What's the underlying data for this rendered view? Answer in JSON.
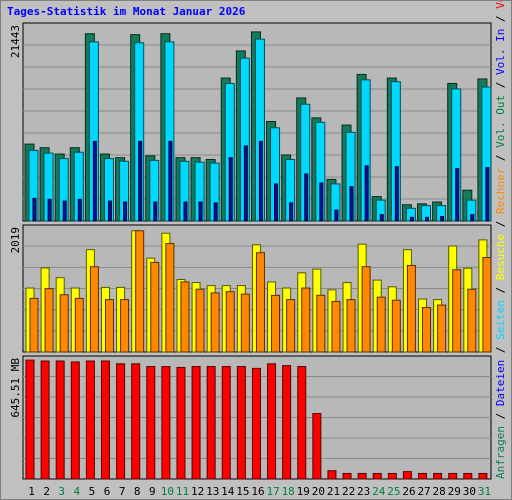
{
  "title": "Tages-Statistik im Monat Januar 2026",
  "colors": {
    "background": "#c0c0c0",
    "panel": "#b8b8b8",
    "grid": "#8a8a8a",
    "title": "#0000ff",
    "anfragen": "#137b59",
    "dateien": "#00d8ff",
    "seiten": "#0010a0",
    "besuche": "#ffff00",
    "rechner": "#ff8800",
    "volumen": "#ff0000",
    "weekend": "#008040",
    "weekday": "#000000"
  },
  "chart_data": [
    {
      "type": "bar",
      "panel": "top",
      "ymax_label": "21443",
      "ymax": 21443,
      "categories": [
        "1",
        "2",
        "3",
        "4",
        "5",
        "6",
        "7",
        "8",
        "9",
        "10",
        "11",
        "12",
        "13",
        "14",
        "15",
        "16",
        "17",
        "18",
        "19",
        "20",
        "21",
        "22",
        "23",
        "24",
        "25",
        "26",
        "27",
        "28",
        "29",
        "30",
        "31"
      ],
      "series": [
        {
          "name": "Anfragen",
          "color": "#137b59",
          "values": [
            8500,
            8100,
            7400,
            8100,
            20700,
            7400,
            7000,
            20600,
            7200,
            20700,
            7000,
            7000,
            6800,
            15800,
            18800,
            20900,
            11000,
            7300,
            13600,
            11400,
            4600,
            10600,
            16200,
            2700,
            15800,
            1800,
            1900,
            2100,
            15200,
            3400,
            15700
          ]
        },
        {
          "name": "Dateien",
          "color": "#00d8ff",
          "values": [
            7800,
            7500,
            6900,
            7600,
            19800,
            6900,
            6600,
            19700,
            6700,
            19800,
            6600,
            6500,
            6400,
            15200,
            18000,
            20100,
            10300,
            6800,
            12900,
            10900,
            4100,
            9800,
            15600,
            2300,
            15400,
            1400,
            1700,
            1700,
            14600,
            2300,
            14800
          ]
        },
        {
          "name": "Seiten",
          "color": "#0010a0",
          "values": [
            2500,
            2400,
            2200,
            2400,
            8800,
            2200,
            2100,
            8800,
            2100,
            8800,
            2100,
            2100,
            2000,
            7000,
            8300,
            8800,
            4100,
            2000,
            5200,
            4200,
            1200,
            3800,
            6100,
            700,
            6000,
            400,
            400,
            500,
            5800,
            700,
            5900
          ]
        }
      ]
    },
    {
      "type": "bar",
      "panel": "middle",
      "ymax_label": "2019",
      "ymax": 2019,
      "categories": [
        "1",
        "2",
        "3",
        "4",
        "5",
        "6",
        "7",
        "8",
        "9",
        "10",
        "11",
        "12",
        "13",
        "14",
        "15",
        "16",
        "17",
        "18",
        "19",
        "20",
        "21",
        "22",
        "23",
        "24",
        "25",
        "26",
        "27",
        "28",
        "29",
        "30",
        "31"
      ],
      "series": [
        {
          "name": "Besuche",
          "color": "#ffff00",
          "values": [
            1050,
            1380,
            1220,
            1050,
            1680,
            1060,
            1060,
            1990,
            1540,
            1950,
            1190,
            1140,
            1090,
            1090,
            1090,
            1760,
            1150,
            1050,
            1300,
            1360,
            1020,
            1140,
            1770,
            1180,
            1070,
            1680,
            870,
            860,
            1740,
            1375,
            1840
          ]
        },
        {
          "name": "Rechner",
          "color": "#ff8800",
          "values": [
            880,
            1040,
            940,
            880,
            1400,
            860,
            860,
            1990,
            1470,
            1780,
            1150,
            1030,
            970,
            990,
            950,
            1630,
            930,
            860,
            1050,
            930,
            830,
            860,
            1400,
            900,
            850,
            1420,
            730,
            770,
            1350,
            1030,
            1550
          ]
        }
      ]
    },
    {
      "type": "bar",
      "panel": "bottom",
      "ymax_label": "645.51 MB",
      "ymax": 645.51,
      "unit": "MB",
      "categories": [
        "1",
        "2",
        "3",
        "4",
        "5",
        "6",
        "7",
        "8",
        "9",
        "10",
        "11",
        "12",
        "13",
        "14",
        "15",
        "16",
        "17",
        "18",
        "19",
        "20",
        "21",
        "22",
        "23",
        "24",
        "25",
        "26",
        "27",
        "28",
        "29",
        "30",
        "31"
      ],
      "series": [
        {
          "name": "Volumen",
          "color": "#ff0000",
          "values": [
            645,
            640,
            640,
            635,
            640,
            640,
            625,
            625,
            610,
            610,
            605,
            610,
            610,
            610,
            610,
            600,
            625,
            615,
            610,
            355,
            45,
            30,
            30,
            30,
            30,
            40,
            30,
            30,
            30,
            30,
            30
          ]
        }
      ]
    }
  ],
  "weekend_days": [
    "3",
    "4",
    "10",
    "11",
    "17",
    "18",
    "24",
    "25",
    "31"
  ],
  "legend_right_top": [
    {
      "text": "Anfragen",
      "color": "#137b59"
    },
    {
      "text": " / ",
      "color": "#000000"
    },
    {
      "text": "Dateien",
      "color": "#0000ff"
    },
    {
      "text": " / ",
      "color": "#000000"
    },
    {
      "text": "Seiten",
      "color": "#00d8ff"
    },
    {
      "text": " / ",
      "color": "#000000"
    },
    {
      "text": "Besuche",
      "color": "#ffff00"
    },
    {
      "text": " / ",
      "color": "#000000"
    },
    {
      "text": "Rechner",
      "color": "#ff8800"
    },
    {
      "text": " / ",
      "color": "#000000"
    },
    {
      "text": "Vol. Out",
      "color": "#008040"
    },
    {
      "text": " / ",
      "color": "#000000"
    },
    {
      "text": "Vol. In",
      "color": "#0000ff"
    },
    {
      "text": " / ",
      "color": "#000000"
    },
    {
      "text": "Volumen",
      "color": "#ff0000"
    }
  ]
}
